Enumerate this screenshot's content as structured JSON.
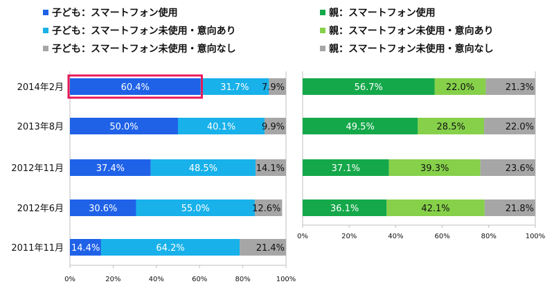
{
  "chart_data": [
    {
      "type": "bar",
      "orientation": "horizontal",
      "stacked": true,
      "panel": "left",
      "categories": [
        "2014年2月",
        "2013年8月",
        "2012年11月",
        "2012年6月",
        "2011年11月"
      ],
      "series": [
        {
          "name": "子ども：スマートフォン使用",
          "color": "#1f62e8",
          "values": [
            60.4,
            50.0,
            37.4,
            30.6,
            14.4
          ]
        },
        {
          "name": "子ども：スマートフォン未使用・意向あり",
          "color": "#18b1ea",
          "values": [
            31.7,
            40.1,
            48.5,
            55.0,
            64.2
          ]
        },
        {
          "name": "子ども：スマートフォン未使用・意向なし",
          "color": "#a6a6a6",
          "values": [
            7.9,
            9.9,
            14.1,
            12.6,
            21.4
          ]
        }
      ],
      "xticks": [
        "0%",
        "20%",
        "40%",
        "60%",
        "80%",
        "100%"
      ],
      "xlim": [
        0,
        100
      ],
      "highlight": {
        "category": "2014年2月",
        "series": "子ども：スマートフォン使用",
        "color": "#e8195a"
      }
    },
    {
      "type": "bar",
      "orientation": "horizontal",
      "stacked": true,
      "panel": "right",
      "categories": [
        "2014年2月",
        "2013年8月",
        "2012年11月",
        "2012年6月"
      ],
      "series": [
        {
          "name": "親：スマートフォン使用",
          "color": "#14a84a",
          "values": [
            56.7,
            49.5,
            37.1,
            36.1
          ]
        },
        {
          "name": "親：スマートフォン未使用・意向あり",
          "color": "#86d04a",
          "values": [
            22.0,
            28.5,
            39.3,
            42.1
          ]
        },
        {
          "name": "親：スマートフォン未使用・意向なし",
          "color": "#a6a6a6",
          "values": [
            21.3,
            22.0,
            23.6,
            21.8
          ]
        }
      ],
      "xticks": [
        "0%",
        "20%",
        "40%",
        "60%",
        "80%",
        "100%"
      ],
      "xlim": [
        0,
        100
      ]
    }
  ]
}
